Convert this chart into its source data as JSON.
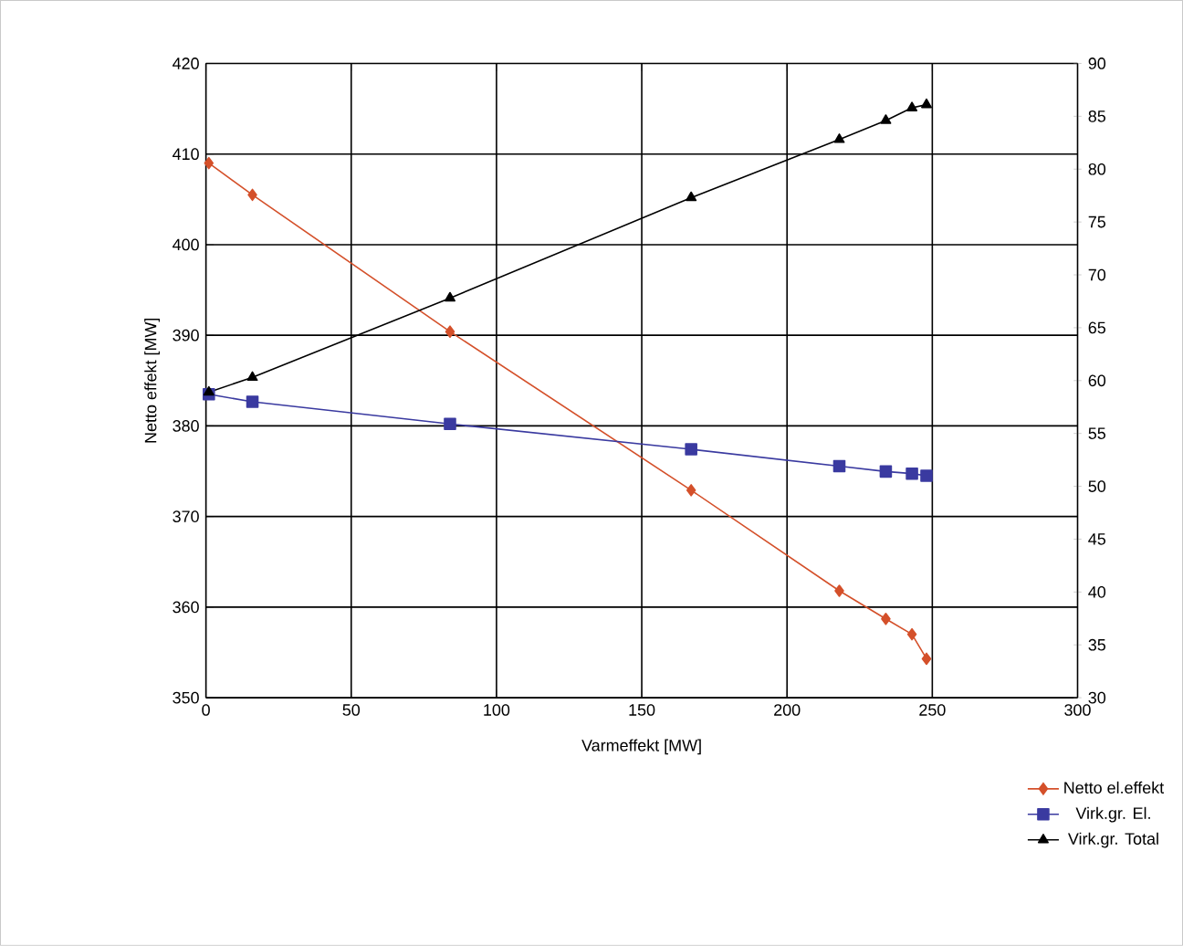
{
  "chart_data": {
    "type": "line",
    "xlabel": "Varmeffekt [MW]",
    "ylabel": "Netto effekt [MW]",
    "xlim": [
      0,
      300
    ],
    "xticks": [
      0,
      50,
      100,
      150,
      200,
      250,
      300
    ],
    "ylim": [
      350,
      420
    ],
    "yticks": [
      350,
      360,
      370,
      380,
      390,
      400,
      410,
      420
    ],
    "y2lim": [
      30,
      90
    ],
    "y2ticks": [
      30,
      35,
      40,
      45,
      50,
      55,
      60,
      65,
      70,
      75,
      80,
      85,
      90
    ],
    "grid": true,
    "legend": "bottom right",
    "line_style": "solid",
    "x": [
      1,
      16,
      84,
      167,
      218,
      234,
      243,
      248
    ],
    "series": [
      {
        "name": "Netto el.effekt",
        "color": "#d4502a",
        "marker": "diamond",
        "values": [
          409,
          405.5,
          390.4,
          372.9,
          361.8,
          358.7,
          357.0,
          354.3
        ]
      },
      {
        "name": "Virk.gr. El.",
        "color": "#3a3aa0",
        "marker": "square",
        "axis": "y2",
        "values": [
          58.7,
          58.0,
          55.9,
          53.5,
          51.9,
          51.4,
          51.2,
          51.0
        ]
      },
      {
        "name": "Virk.gr. Total",
        "color": "#000000",
        "marker": "triangle",
        "axis": "y2",
        "values": [
          58.9,
          60.3,
          67.8,
          77.3,
          82.8,
          84.6,
          85.8,
          86.1
        ]
      }
    ]
  }
}
